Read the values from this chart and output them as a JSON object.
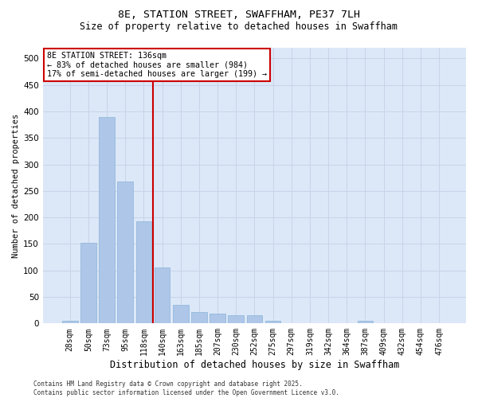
{
  "title_line1": "8E, STATION STREET, SWAFFHAM, PE37 7LH",
  "title_line2": "Size of property relative to detached houses in Swaffham",
  "xlabel": "Distribution of detached houses by size in Swaffham",
  "ylabel": "Number of detached properties",
  "categories": [
    "28sqm",
    "50sqm",
    "73sqm",
    "95sqm",
    "118sqm",
    "140sqm",
    "163sqm",
    "185sqm",
    "207sqm",
    "230sqm",
    "252sqm",
    "275sqm",
    "297sqm",
    "319sqm",
    "342sqm",
    "364sqm",
    "387sqm",
    "409sqm",
    "432sqm",
    "454sqm",
    "476sqm"
  ],
  "values": [
    5,
    152,
    390,
    268,
    193,
    105,
    35,
    22,
    18,
    16,
    16,
    5,
    0,
    0,
    0,
    0,
    5,
    0,
    0,
    0,
    0
  ],
  "bar_color": "#aec6e8",
  "bar_edge_color": "#8ab4d8",
  "grid_color": "#c8d4e8",
  "bg_color": "#dce8f8",
  "vline_color": "#cc0000",
  "annotation_box_text": "8E STATION STREET: 136sqm\n← 83% of detached houses are smaller (984)\n17% of semi-detached houses are larger (199) →",
  "footer": "Contains HM Land Registry data © Crown copyright and database right 2025.\nContains public sector information licensed under the Open Government Licence v3.0.",
  "ylim": [
    0,
    520
  ],
  "yticks": [
    0,
    50,
    100,
    150,
    200,
    250,
    300,
    350,
    400,
    450,
    500
  ],
  "vline_pos": 4.5
}
